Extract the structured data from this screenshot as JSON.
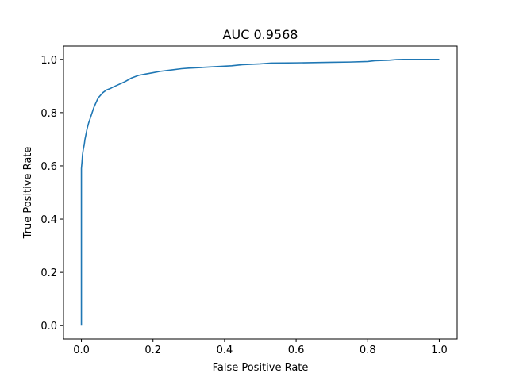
{
  "chart_data": {
    "type": "line",
    "title": "AUC 0.9568",
    "xlabel": "False Positive Rate",
    "ylabel": "True Positive Rate",
    "xlim": [
      -0.05,
      1.05
    ],
    "ylim": [
      -0.05,
      1.05
    ],
    "x_ticks": [
      0.0,
      0.2,
      0.4,
      0.6,
      0.8,
      1.0
    ],
    "x_tick_labels": [
      "0.0",
      "0.2",
      "0.4",
      "0.6",
      "0.8",
      "1.0"
    ],
    "y_ticks": [
      0.0,
      0.2,
      0.4,
      0.6,
      0.8,
      1.0
    ],
    "y_tick_labels": [
      "0.0",
      "0.2",
      "0.4",
      "0.6",
      "0.8",
      "1.0"
    ],
    "grid": false,
    "legend": "none",
    "series": [
      {
        "color": "#1f77b4",
        "x": [
          0.0,
          0.0,
          0.0,
          0.002,
          0.003,
          0.005,
          0.008,
          0.01,
          0.013,
          0.016,
          0.02,
          0.025,
          0.03,
          0.035,
          0.04,
          0.045,
          0.05,
          0.06,
          0.07,
          0.08,
          0.09,
          0.1,
          0.12,
          0.14,
          0.16,
          0.18,
          0.2,
          0.22,
          0.25,
          0.28,
          0.3,
          0.34,
          0.38,
          0.42,
          0.45,
          0.5,
          0.53,
          0.6,
          0.65,
          0.7,
          0.75,
          0.8,
          0.82,
          0.86,
          0.88,
          0.9,
          1.0
        ],
        "y": [
          0.0,
          0.27,
          0.59,
          0.62,
          0.64,
          0.66,
          0.68,
          0.7,
          0.72,
          0.74,
          0.76,
          0.78,
          0.8,
          0.82,
          0.835,
          0.85,
          0.86,
          0.875,
          0.885,
          0.89,
          0.897,
          0.903,
          0.915,
          0.93,
          0.94,
          0.945,
          0.95,
          0.955,
          0.96,
          0.965,
          0.967,
          0.97,
          0.973,
          0.976,
          0.98,
          0.983,
          0.986,
          0.987,
          0.988,
          0.989,
          0.99,
          0.992,
          0.995,
          0.997,
          0.999,
          1.0,
          1.0
        ]
      }
    ]
  }
}
